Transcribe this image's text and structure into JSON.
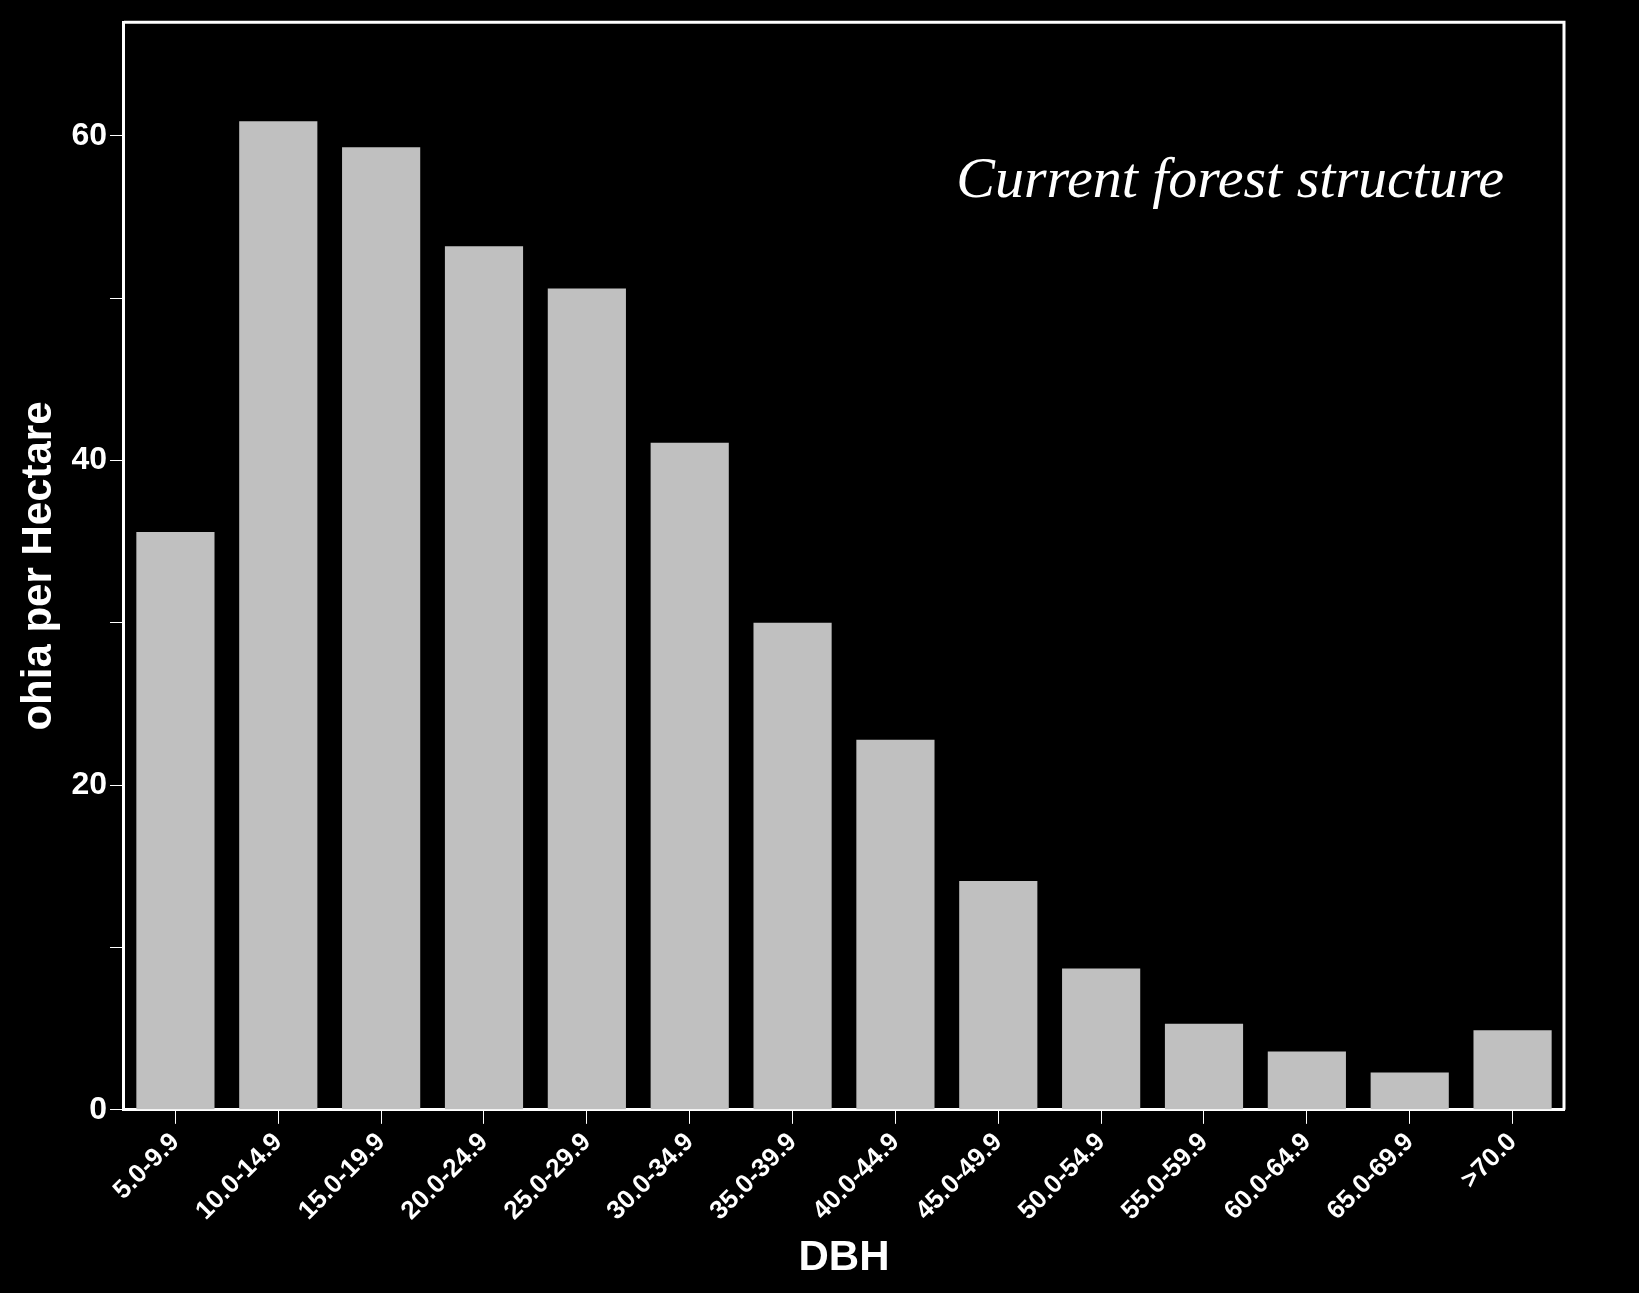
{
  "chart_data": {
    "type": "bar",
    "title": "Current forest structure",
    "xlabel": "DBH",
    "ylabel": "ohia per Hectare",
    "categories": [
      "5.0-9.9",
      "10.0-14.9",
      "15.0-19.9",
      "20.0-24.9",
      "25.0-29.9",
      "30.0-34.9",
      "35.0-39.9",
      "40.0-44.9",
      "45.0-49.9",
      "50.0-54.9",
      "55.0-59.9",
      "60.0-64.9",
      "65.0-69.9",
      ">70.0"
    ],
    "values": [
      35.6,
      60.9,
      59.3,
      53.2,
      50.6,
      41.1,
      30.0,
      22.8,
      14.1,
      8.7,
      5.3,
      3.6,
      2.3,
      4.9
    ],
    "color": "#c0c0c0",
    "ylim": [
      0,
      67
    ],
    "yticks": [
      0,
      {
        "value": 10,
        "label": null
      },
      20,
      {
        "value": 30,
        "label": null
      },
      40,
      {
        "value": 50,
        "label": null
      },
      60
    ],
    "grid": false,
    "legend": false
  }
}
